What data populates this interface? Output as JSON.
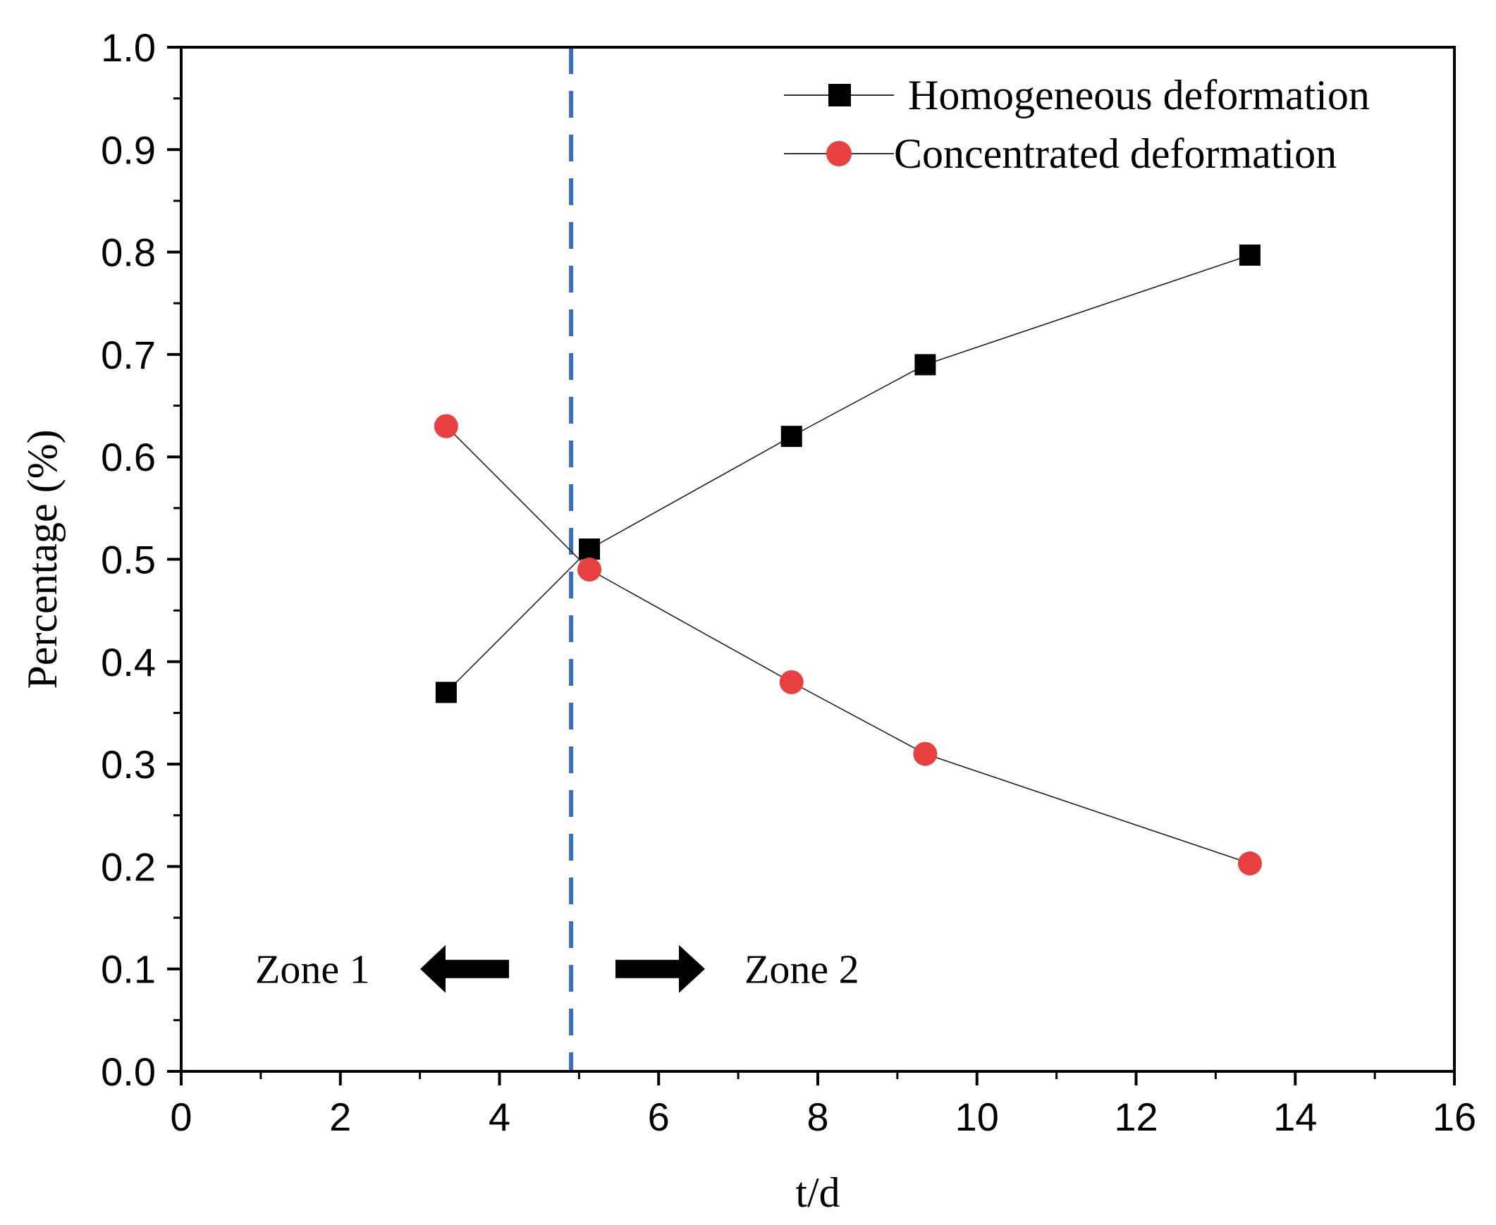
{
  "chart_data": {
    "type": "line",
    "title": "",
    "xlabel": "t/d",
    "ylabel": "Percentage (%)",
    "xlim": [
      0,
      16
    ],
    "ylim": [
      0,
      1.0
    ],
    "x_ticks": [
      0,
      2,
      4,
      6,
      8,
      10,
      12,
      14,
      16
    ],
    "x_tick_labels": [
      "0",
      "2",
      "4",
      "6",
      "8",
      "10",
      "12",
      "14",
      "16"
    ],
    "y_ticks": [
      0.0,
      0.1,
      0.2,
      0.3,
      0.4,
      0.5,
      0.6,
      0.7,
      0.8,
      0.9,
      1.0
    ],
    "y_tick_labels": [
      "0.0",
      "0.1",
      "0.2",
      "0.3",
      "0.4",
      "0.5",
      "0.6",
      "0.7",
      "0.8",
      "0.9",
      "1.0"
    ],
    "grid": false,
    "legend_position": "top-right",
    "series": [
      {
        "name": "Homogeneous deformation",
        "marker": "square",
        "color": "#000000",
        "x": [
          3.33,
          5.13,
          7.67,
          9.35,
          13.43
        ],
        "y": [
          0.37,
          0.51,
          0.62,
          0.69,
          0.797
        ]
      },
      {
        "name": "Concentrated deformation",
        "marker": "circle",
        "color": "#e8403f",
        "x": [
          3.33,
          5.13,
          7.67,
          9.35,
          13.43
        ],
        "y": [
          0.63,
          0.49,
          0.38,
          0.31,
          0.203
        ]
      }
    ],
    "annotations": {
      "divider_x": 4.9,
      "divider_color": "#3a6fbf",
      "zone_left_label": "Zone 1",
      "zone_right_label": "Zone 2",
      "zone_label_y": 0.1
    }
  }
}
